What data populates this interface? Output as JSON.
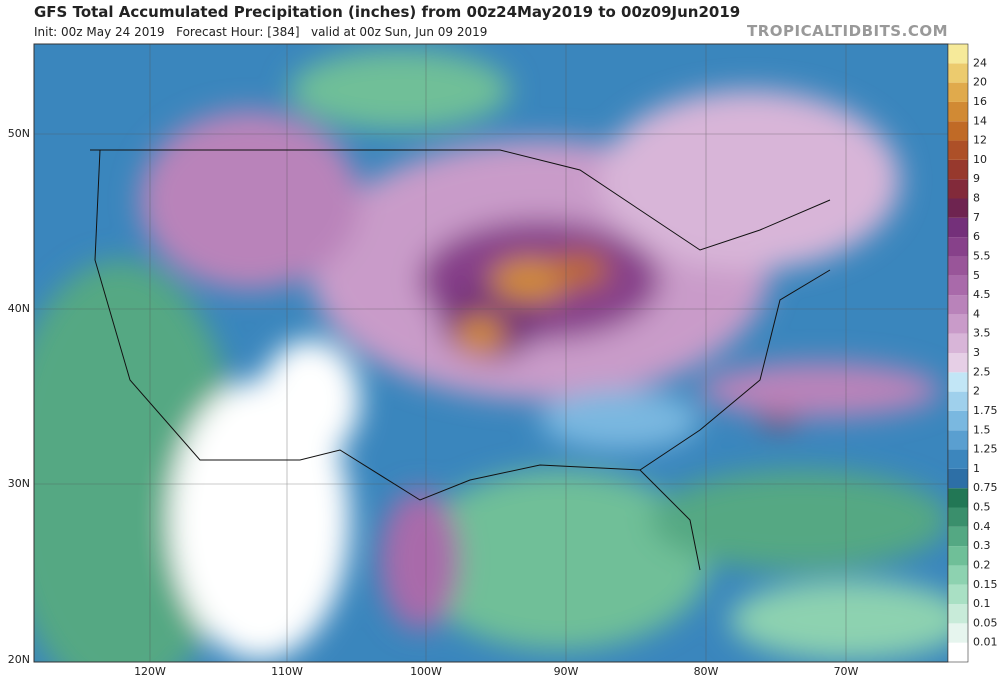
{
  "header": {
    "title": "GFS Total Accumulated Precipitation (inches) from 00z24May2019 to 00z09Jun2019",
    "subtitle": "Init: 00z May 24 2019   Forecast Hour: [384]   valid at 00z Sun, Jun 09 2019",
    "site": "TROPICALTIDBITS.COM"
  },
  "map": {
    "lat_labels": [
      "50N",
      "40N",
      "30N",
      "20N"
    ],
    "lon_labels": [
      "120W",
      "110W",
      "100W",
      "90W",
      "80W",
      "70W"
    ]
  },
  "colorbar": {
    "labels": [
      "0.01",
      "0.05",
      "0.1",
      "0.15",
      "0.2",
      "0.3",
      "0.4",
      "0.5",
      "0.75",
      "1",
      "1.25",
      "1.5",
      "1.75",
      "2",
      "2.5",
      "3",
      "3.5",
      "4",
      "4.5",
      "5",
      "5.5",
      "6",
      "7",
      "8",
      "9",
      "10",
      "12",
      "14",
      "16",
      "20",
      "24"
    ],
    "colors": [
      "#ffffff",
      "#e6f5ee",
      "#c8ebd9",
      "#a9e0c4",
      "#8dd2b0",
      "#6fbf98",
      "#54a883",
      "#3a8f6c",
      "#227755",
      "#2d6fa6",
      "#3c86bd",
      "#5a9fd0",
      "#7ab8e0",
      "#9fd0ec",
      "#c2e6f6",
      "#e6cfe6",
      "#d8b5d8",
      "#c99bc9",
      "#b983ba",
      "#a96aaa",
      "#995599",
      "#87418a",
      "#74307a",
      "#6e2450",
      "#822a3a",
      "#97392d",
      "#ad5028",
      "#c06a26",
      "#d18a34",
      "#e0aa4c",
      "#eccb6e",
      "#f6ea9a"
    ]
  }
}
